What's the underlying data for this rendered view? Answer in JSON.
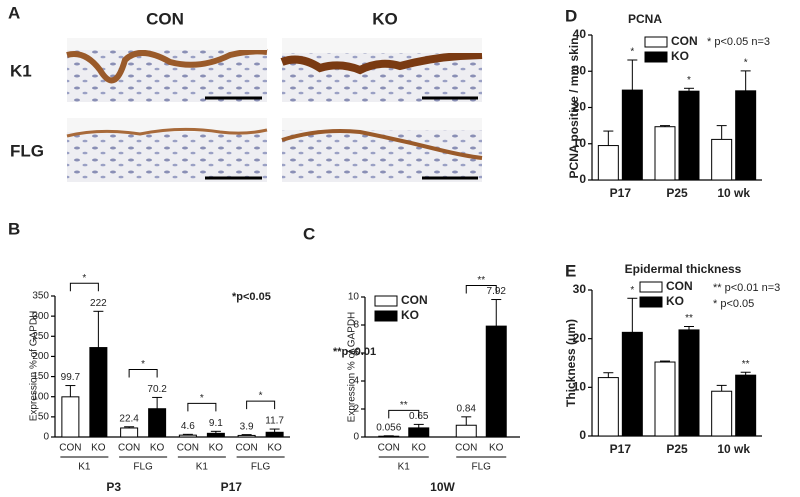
{
  "panel_a": {
    "label": "A",
    "columns": [
      "CON",
      "KO"
    ],
    "rows": [
      "K1",
      "FLG"
    ]
  },
  "chart_data": [
    {
      "type": "bar",
      "label": "B",
      "ylabel": "Expression % of GAPDH",
      "categories": [
        "K1",
        "FLG",
        "K1",
        "FLG"
      ],
      "groups": [
        "P3",
        "P17"
      ],
      "series": [
        {
          "name": "CON",
          "color": "#ffffff",
          "values": [
            99.7,
            22.4,
            4.6,
            3.9
          ],
          "errors": [
            28,
            3,
            2,
            2
          ]
        },
        {
          "name": "KO",
          "color": "#000000",
          "values": [
            222,
            70.2,
            9.1,
            11.7
          ],
          "errors": [
            90,
            28,
            5,
            8
          ]
        }
      ],
      "significance": [
        "*",
        "*",
        "*",
        "*"
      ],
      "bracket": true,
      "value_labels_shown": true,
      "legend": false,
      "annotations": [
        "*p<0.05"
      ],
      "ylim": [
        0,
        350
      ],
      "yticks": [
        0,
        50,
        100,
        150,
        200,
        250,
        300,
        350
      ]
    },
    {
      "type": "bar",
      "label": "C",
      "ylabel": "Expression % of GAPDH",
      "categories": [
        "K1",
        "FLG"
      ],
      "groups": [
        "10W"
      ],
      "series": [
        {
          "name": "CON",
          "color": "#ffffff",
          "values": [
            0.056,
            0.84
          ],
          "errors": [
            0.03,
            0.6
          ]
        },
        {
          "name": "KO",
          "color": "#000000",
          "values": [
            0.65,
            7.92
          ],
          "errors": [
            0.25,
            1.9
          ]
        }
      ],
      "significance": [
        "**",
        "**"
      ],
      "bracket": true,
      "value_labels_shown": true,
      "legend": true,
      "annotations": [
        "**p<0.01"
      ],
      "ylim": [
        0,
        10
      ],
      "yticks": [
        0,
        2,
        4,
        6,
        8,
        10
      ]
    },
    {
      "type": "bar",
      "label": "D",
      "title": "PCNA",
      "ylabel": "PCNA positive / mm skin",
      "categories": [
        "P17",
        "P25",
        "10 wk"
      ],
      "series": [
        {
          "name": "CON",
          "color": "#ffffff",
          "values": [
            9.5,
            14.7,
            11.2
          ],
          "errors": [
            4,
            0.3,
            3.8
          ]
        },
        {
          "name": "KO",
          "color": "#000000",
          "values": [
            24.8,
            24.5,
            24.6
          ],
          "errors": [
            8.3,
            0.8,
            5.5
          ]
        }
      ],
      "significance": [
        "*",
        "*",
        "*"
      ],
      "bracket": false,
      "value_labels_shown": false,
      "legend": true,
      "annotations": [
        "* p<0.05 n=3"
      ],
      "ylim": [
        0,
        40
      ],
      "yticks": [
        0,
        10,
        20,
        30,
        40
      ]
    },
    {
      "type": "bar",
      "label": "E",
      "title": "Epidermal thickness",
      "ylabel": "Thickness (um)",
      "categories": [
        "P17",
        "P25",
        "10 wk"
      ],
      "series": [
        {
          "name": "CON",
          "color": "#ffffff",
          "values": [
            12,
            15.2,
            9.2
          ],
          "errors": [
            1,
            0.2,
            1.2
          ]
        },
        {
          "name": "KO",
          "color": "#000000",
          "values": [
            21.3,
            21.8,
            12.5
          ],
          "errors": [
            7,
            0.7,
            0.6
          ]
        }
      ],
      "significance": [
        "*",
        "**",
        "**"
      ],
      "bracket": false,
      "value_labels_shown": false,
      "legend": true,
      "annotations": [
        "** p<0.01 n=3",
        "*  p<0.05"
      ],
      "ylim": [
        0,
        30
      ],
      "yticks": [
        0,
        10,
        20,
        30
      ]
    }
  ]
}
